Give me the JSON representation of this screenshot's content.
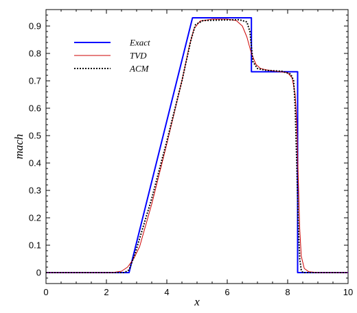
{
  "chart_data": {
    "type": "line",
    "xlabel": "x",
    "ylabel": "mach",
    "xlim": [
      0,
      10
    ],
    "ylim": [
      -0.04,
      0.96
    ],
    "x_ticks": [
      0,
      2,
      4,
      6,
      8,
      10
    ],
    "x_tick_labels": [
      "0",
      "2",
      "4",
      "6",
      "8",
      "10"
    ],
    "y_ticks": [
      0,
      0.1,
      0.2,
      0.3,
      0.4,
      0.5,
      0.6,
      0.7,
      0.8,
      0.9
    ],
    "y_tick_labels": [
      "0",
      "0.1",
      "0.2",
      "0.3",
      "0.4",
      "0.5",
      "0.6",
      "0.7",
      "0.8",
      "0.9"
    ],
    "grid": false,
    "legend_position": "top-left",
    "series": [
      {
        "name": "Exact",
        "color": "#0000ff",
        "style": "solid",
        "x": [
          0,
          2.75,
          4.85,
          6.8,
          6.8,
          8.33,
          8.33,
          10
        ],
        "y": [
          0,
          0,
          0.93,
          0.93,
          0.733,
          0.733,
          0,
          0
        ]
      },
      {
        "name": "TVD",
        "color": "#cc0000",
        "style": "solid",
        "x": [
          0,
          2.2,
          2.5,
          2.7,
          2.9,
          3.1,
          3.5,
          4.0,
          4.5,
          4.75,
          4.9,
          5.1,
          5.5,
          6.0,
          6.3,
          6.5,
          6.65,
          6.8,
          6.95,
          7.1,
          7.3,
          7.6,
          8.0,
          8.15,
          8.25,
          8.3,
          8.35,
          8.4,
          8.45,
          8.55,
          8.7,
          9.0,
          10
        ],
        "y": [
          0,
          0,
          0.005,
          0.02,
          0.05,
          0.095,
          0.25,
          0.47,
          0.7,
          0.83,
          0.89,
          0.918,
          0.925,
          0.925,
          0.92,
          0.9,
          0.86,
          0.8,
          0.76,
          0.745,
          0.74,
          0.735,
          0.73,
          0.71,
          0.65,
          0.55,
          0.35,
          0.16,
          0.06,
          0.015,
          0.003,
          0,
          0
        ]
      },
      {
        "name": "ACM",
        "color": "#000000",
        "style": "dotted",
        "x": [
          0,
          2.6,
          2.75,
          2.95,
          3.5,
          4.0,
          4.5,
          4.8,
          4.95,
          5.2,
          5.8,
          6.4,
          6.65,
          6.75,
          6.85,
          7.0,
          7.3,
          7.8,
          8.1,
          8.2,
          8.25,
          8.3,
          8.35,
          8.4,
          8.45,
          8.5,
          10
        ],
        "y": [
          0,
          0,
          0.01,
          0.07,
          0.27,
          0.48,
          0.7,
          0.85,
          0.905,
          0.92,
          0.922,
          0.923,
          0.915,
          0.88,
          0.77,
          0.745,
          0.738,
          0.735,
          0.725,
          0.7,
          0.6,
          0.4,
          0.18,
          0.05,
          0.01,
          0,
          0
        ]
      }
    ]
  }
}
